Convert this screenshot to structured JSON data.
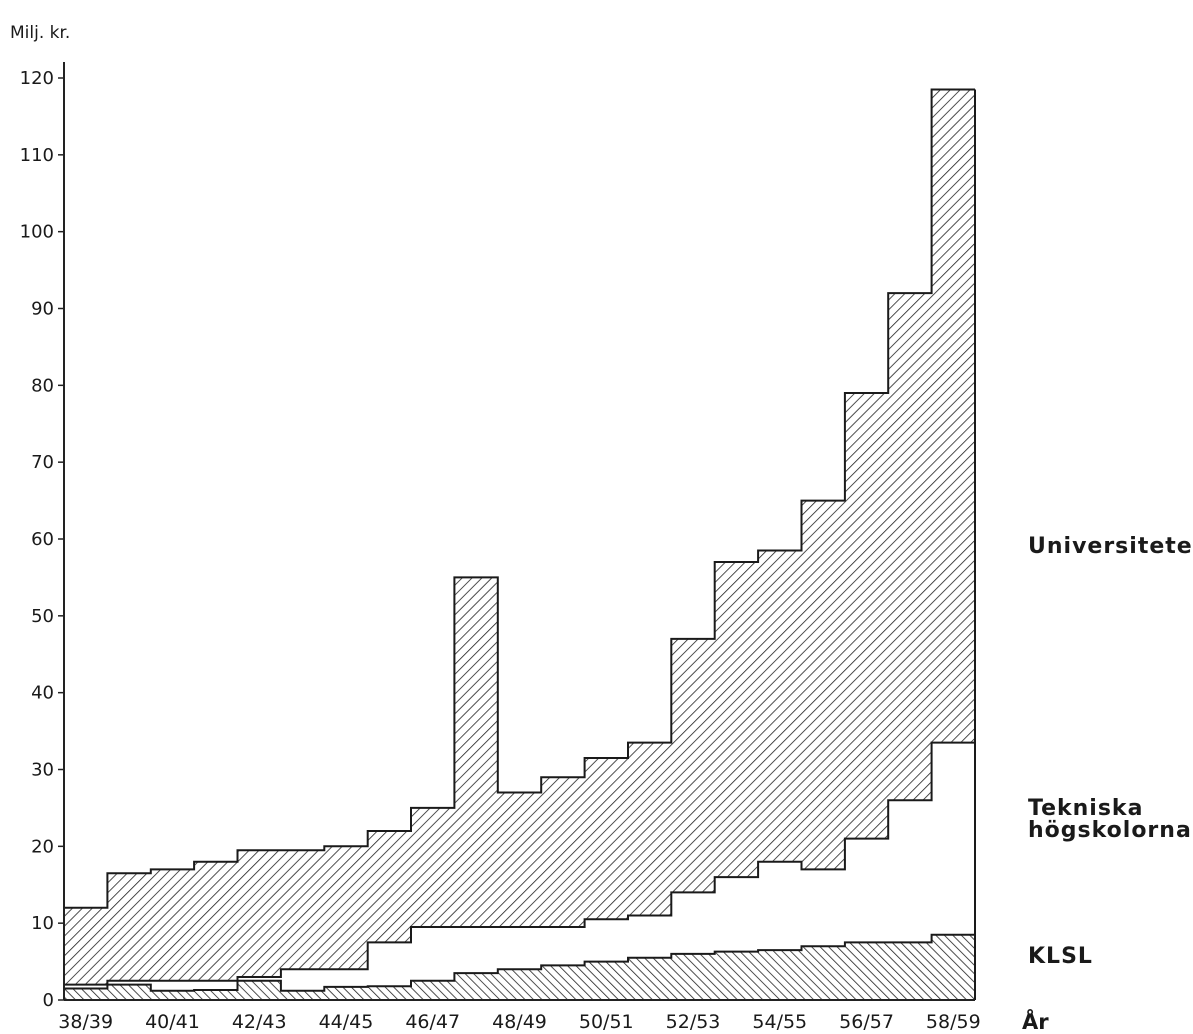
{
  "chart_data": {
    "type": "area",
    "step": true,
    "y_unit_label": "Milj. kr.",
    "x_axis_title": "År",
    "ylim": [
      0,
      120
    ],
    "y_ticks": [
      0,
      10,
      20,
      30,
      40,
      50,
      60,
      70,
      80,
      90,
      100,
      110,
      120
    ],
    "x_tick_labels": [
      "38/39",
      "40/41",
      "42/43",
      "44/45",
      "46/47",
      "48/49",
      "50/51",
      "52/53",
      "54/55",
      "56/57",
      "58/59"
    ],
    "categories": [
      "38/39",
      "39/40",
      "40/41",
      "41/42",
      "42/43",
      "43/44",
      "44/45",
      "45/46",
      "46/47",
      "47/48",
      "48/49",
      "49/50",
      "50/51",
      "51/52",
      "52/53",
      "53/54",
      "54/55",
      "55/56",
      "56/57",
      "57/58",
      "58/59"
    ],
    "series": [
      {
        "name": "KLSL",
        "values": [
          1.5,
          2,
          1.2,
          1.3,
          2.5,
          1.2,
          1.7,
          1.8,
          2.5,
          3.5,
          4,
          4.5,
          5,
          5.5,
          6,
          6.3,
          6.5,
          7,
          7.5,
          7.5,
          8.5
        ]
      },
      {
        "name": "Tekniska högskolorna",
        "values": [
          2,
          2.5,
          2.5,
          2.5,
          3,
          4,
          4,
          7.5,
          9.5,
          9.5,
          9.5,
          9.5,
          10.5,
          11,
          14,
          16,
          18,
          17,
          21,
          26,
          33.5
        ]
      },
      {
        "name": "Universiteten",
        "values": [
          12,
          16.5,
          17,
          18,
          19.5,
          19.5,
          20,
          22,
          25,
          55,
          27,
          29,
          31.5,
          33.5,
          47,
          57,
          58.5,
          65,
          79,
          92,
          118.5
        ]
      }
    ]
  }
}
